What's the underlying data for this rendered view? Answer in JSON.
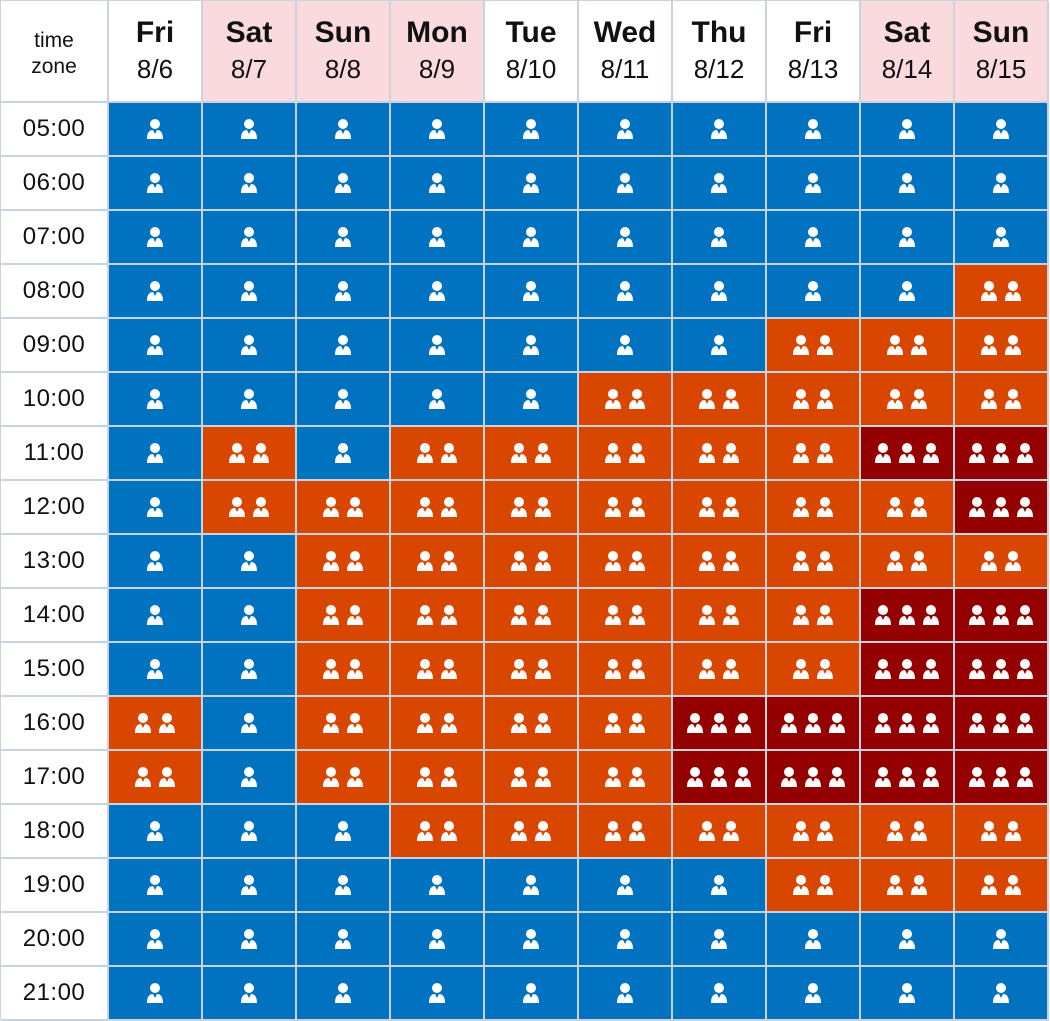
{
  "header": {
    "corner_label_line1": "time",
    "corner_label_line2": "zone"
  },
  "days": [
    {
      "name": "Fri",
      "date": "8/6",
      "weekend": false
    },
    {
      "name": "Sat",
      "date": "8/7",
      "weekend": true
    },
    {
      "name": "Sun",
      "date": "8/8",
      "weekend": true
    },
    {
      "name": "Mon",
      "date": "8/9",
      "weekend": true
    },
    {
      "name": "Tue",
      "date": "8/10",
      "weekend": false
    },
    {
      "name": "Wed",
      "date": "8/11",
      "weekend": false
    },
    {
      "name": "Thu",
      "date": "8/12",
      "weekend": false
    },
    {
      "name": "Fri",
      "date": "8/13",
      "weekend": false
    },
    {
      "name": "Sat",
      "date": "8/14",
      "weekend": true
    },
    {
      "name": "Sun",
      "date": "8/15",
      "weekend": true
    }
  ],
  "times": [
    "05:00",
    "06:00",
    "07:00",
    "08:00",
    "09:00",
    "10:00",
    "11:00",
    "12:00",
    "13:00",
    "14:00",
    "15:00",
    "16:00",
    "17:00",
    "18:00",
    "19:00",
    "20:00",
    "21:00"
  ],
  "levels": [
    [
      1,
      1,
      1,
      1,
      1,
      1,
      1,
      1,
      1,
      1
    ],
    [
      1,
      1,
      1,
      1,
      1,
      1,
      1,
      1,
      1,
      1
    ],
    [
      1,
      1,
      1,
      1,
      1,
      1,
      1,
      1,
      1,
      1
    ],
    [
      1,
      1,
      1,
      1,
      1,
      1,
      1,
      1,
      1,
      2
    ],
    [
      1,
      1,
      1,
      1,
      1,
      1,
      1,
      2,
      2,
      2
    ],
    [
      1,
      1,
      1,
      1,
      1,
      2,
      2,
      2,
      2,
      2
    ],
    [
      1,
      2,
      1,
      2,
      2,
      2,
      2,
      2,
      3,
      3
    ],
    [
      1,
      2,
      2,
      2,
      2,
      2,
      2,
      2,
      2,
      3
    ],
    [
      1,
      1,
      2,
      2,
      2,
      2,
      2,
      2,
      2,
      2
    ],
    [
      1,
      1,
      2,
      2,
      2,
      2,
      2,
      2,
      3,
      3
    ],
    [
      1,
      1,
      2,
      2,
      2,
      2,
      2,
      2,
      3,
      3
    ],
    [
      2,
      1,
      2,
      2,
      2,
      2,
      3,
      3,
      3,
      3
    ],
    [
      2,
      1,
      2,
      2,
      2,
      2,
      3,
      3,
      3,
      3
    ],
    [
      1,
      1,
      1,
      2,
      2,
      2,
      2,
      2,
      2,
      2
    ],
    [
      1,
      1,
      1,
      1,
      1,
      1,
      1,
      2,
      2,
      2
    ],
    [
      1,
      1,
      1,
      1,
      1,
      1,
      1,
      1,
      1,
      1
    ],
    [
      1,
      1,
      1,
      1,
      1,
      1,
      1,
      1,
      1,
      1
    ]
  ],
  "colors": {
    "level_1": "#0072c0",
    "level_2": "#d94600",
    "level_3": "#940000",
    "weekend_header": "#fbdadd",
    "weekday_header": "#ffffff",
    "grid_line": "#c9d3dd"
  },
  "icons": {
    "slot_icon": "person-icon"
  }
}
